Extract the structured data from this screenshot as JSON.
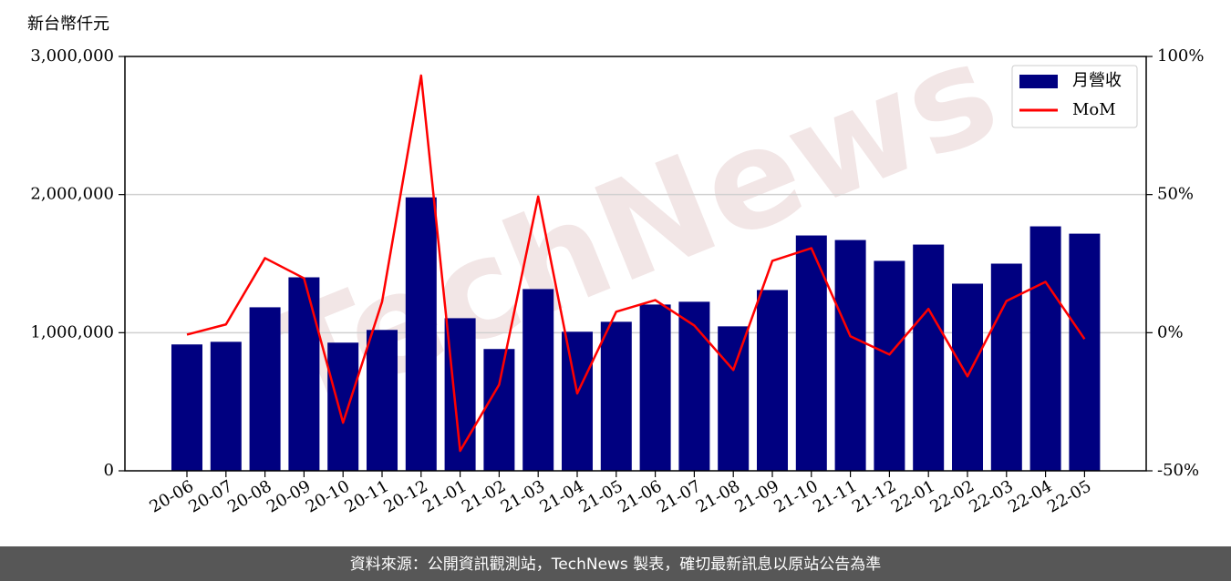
{
  "chart_data": {
    "type": "bar_line",
    "y_label": "新台幣仟元",
    "watermark": "TechNews",
    "footer": "資料來源：公開資訊觀測站，TechNews 製表，確切最新訊息以原站公告為準",
    "categories": [
      "20-06",
      "20-07",
      "20-08",
      "20-09",
      "20-10",
      "20-11",
      "20-12",
      "21-01",
      "21-02",
      "21-03",
      "21-04",
      "21-05",
      "21-06",
      "21-07",
      "21-08",
      "21-09",
      "21-10",
      "21-11",
      "21-12",
      "22-01",
      "22-02",
      "22-03",
      "22-04",
      "22-05"
    ],
    "series": [
      {
        "name": "月營收",
        "type": "bar",
        "color": "#000080",
        "values": [
          915000,
          934000,
          1184000,
          1401000,
          928000,
          1020000,
          1980000,
          1105000,
          882000,
          1316000,
          1007000,
          1079000,
          1204000,
          1224000,
          1046000,
          1309000,
          1704000,
          1671000,
          1520000,
          1638000,
          1355000,
          1500000,
          1770000,
          1717000
        ]
      },
      {
        "name": "MoM",
        "type": "line",
        "axis": "y2",
        "color": "#ff0000",
        "values": [
          -0.7,
          3.0,
          27.0,
          19.7,
          -32.6,
          11.2,
          93.1,
          -42.8,
          -18.8,
          49.3,
          -22.0,
          7.6,
          11.8,
          2.6,
          -13.5,
          26.0,
          30.6,
          -1.3,
          -7.9,
          8.6,
          -15.8,
          11.5,
          18.4,
          -2.3
        ]
      }
    ],
    "ylim": [
      0,
      3000000
    ],
    "yticks": [
      0,
      {
        "value": 1000000,
        "label": "1,000,000"
      },
      {
        "value": 2000000,
        "label": "2,000,000"
      },
      {
        "value": 3000000,
        "label": "3,000,000"
      }
    ],
    "y2lim": [
      -50,
      100
    ],
    "y2ticks": [
      {
        "value": -50,
        "label": "-50%"
      },
      {
        "value": 0,
        "label": "0%"
      },
      {
        "value": 50,
        "label": "50%"
      },
      {
        "value": 100,
        "label": "100%"
      }
    ],
    "grid": true,
    "legend": "upper-right"
  }
}
